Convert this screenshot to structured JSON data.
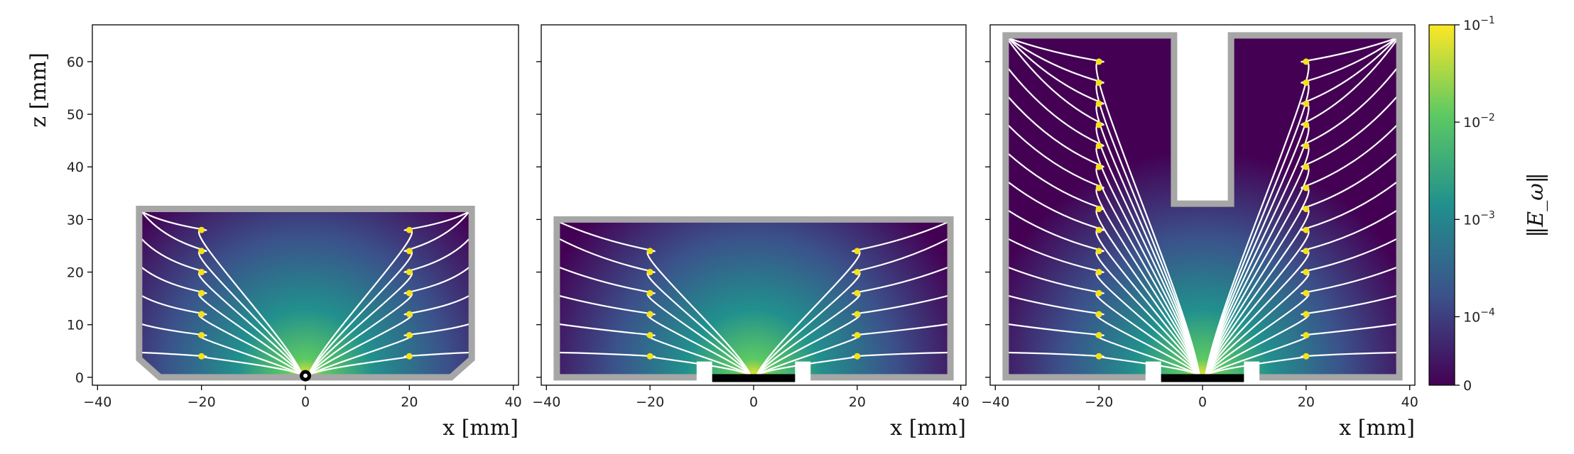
{
  "chart_data": [
    {
      "type": "heatmap",
      "panel": 1,
      "xlabel": "x [mm]",
      "ylabel": "z [mm]",
      "xlim": [
        -41,
        41
      ],
      "ylim": [
        -1.5,
        67
      ],
      "xticks": [
        -40,
        -20,
        0,
        20,
        40
      ],
      "yticks": [
        0,
        10,
        20,
        30,
        40,
        50,
        60
      ],
      "field_source": {
        "x": 0,
        "z": 0
      },
      "geometry": {
        "outline": [
          [
            -32,
            3.5
          ],
          [
            -32,
            32
          ],
          [
            32,
            32
          ],
          [
            32,
            3.5
          ],
          [
            28,
            0
          ],
          [
            -28,
            0
          ]
        ],
        "wall_color": "#a6a6a6"
      },
      "seed_points": [
        {
          "x": -20,
          "z": 4
        },
        {
          "x": -20,
          "z": 8
        },
        {
          "x": -20,
          "z": 12
        },
        {
          "x": -20,
          "z": 16
        },
        {
          "x": -20,
          "z": 20
        },
        {
          "x": -20,
          "z": 24
        },
        {
          "x": -20,
          "z": 28
        },
        {
          "x": 20,
          "z": 4
        },
        {
          "x": 20,
          "z": 8
        },
        {
          "x": 20,
          "z": 12
        },
        {
          "x": 20,
          "z": 16
        },
        {
          "x": 20,
          "z": 20
        },
        {
          "x": 20,
          "z": 24
        },
        {
          "x": 20,
          "z": 28
        }
      ]
    },
    {
      "type": "heatmap",
      "panel": 2,
      "xlabel": "x [mm]",
      "ylabel": "",
      "xlim": [
        -41,
        41
      ],
      "ylim": [
        -1.5,
        67
      ],
      "xticks": [
        -40,
        -20,
        0,
        20,
        40
      ],
      "yticks": [
        0,
        10,
        20,
        30,
        40,
        50,
        60
      ],
      "field_source": {
        "x": 0,
        "z": 0
      },
      "geometry": {
        "outline": [
          [
            -38,
            0
          ],
          [
            -38,
            30
          ],
          [
            38,
            30
          ],
          [
            38,
            0
          ]
        ],
        "wall_color": "#a6a6a6",
        "electrode_gaps": [
          [
            -11,
            -8
          ],
          [
            8,
            11
          ]
        ],
        "electrode": [
          -8,
          8
        ]
      },
      "seed_points": [
        {
          "x": -20,
          "z": 4
        },
        {
          "x": -20,
          "z": 8
        },
        {
          "x": -20,
          "z": 12
        },
        {
          "x": -20,
          "z": 16
        },
        {
          "x": -20,
          "z": 20
        },
        {
          "x": -20,
          "z": 24
        },
        {
          "x": 20,
          "z": 4
        },
        {
          "x": 20,
          "z": 8
        },
        {
          "x": 20,
          "z": 12
        },
        {
          "x": 20,
          "z": 16
        },
        {
          "x": 20,
          "z": 20
        },
        {
          "x": 20,
          "z": 24
        }
      ]
    },
    {
      "type": "heatmap",
      "panel": 3,
      "xlabel": "x [mm]",
      "ylabel": "",
      "xlim": [
        -41,
        41
      ],
      "ylim": [
        -1.5,
        67
      ],
      "xticks": [
        -40,
        -20,
        0,
        20,
        40
      ],
      "yticks": [
        0,
        10,
        20,
        30,
        40,
        50,
        60
      ],
      "field_source": {
        "x": 0,
        "z": 0
      },
      "geometry": {
        "outline": [
          [
            -38,
            0
          ],
          [
            -38,
            65
          ],
          [
            -5.5,
            65
          ],
          [
            -5.5,
            33
          ],
          [
            5.5,
            33
          ],
          [
            5.5,
            65
          ],
          [
            38,
            65
          ],
          [
            38,
            0
          ]
        ],
        "wall_color": "#a6a6a6",
        "electrode_gaps": [
          [
            -11,
            -8
          ],
          [
            8,
            11
          ]
        ],
        "electrode": [
          -8,
          8
        ]
      },
      "seed_points": [
        {
          "x": -20,
          "z": 4
        },
        {
          "x": -20,
          "z": 8
        },
        {
          "x": -20,
          "z": 12
        },
        {
          "x": -20,
          "z": 16
        },
        {
          "x": -20,
          "z": 20
        },
        {
          "x": -20,
          "z": 24
        },
        {
          "x": -20,
          "z": 28
        },
        {
          "x": -20,
          "z": 32
        },
        {
          "x": -20,
          "z": 36
        },
        {
          "x": -20,
          "z": 40
        },
        {
          "x": -20,
          "z": 44
        },
        {
          "x": -20,
          "z": 48
        },
        {
          "x": -20,
          "z": 52
        },
        {
          "x": -20,
          "z": 56
        },
        {
          "x": -20,
          "z": 60
        },
        {
          "x": 20,
          "z": 4
        },
        {
          "x": 20,
          "z": 8
        },
        {
          "x": 20,
          "z": 12
        },
        {
          "x": 20,
          "z": 16
        },
        {
          "x": 20,
          "z": 20
        },
        {
          "x": 20,
          "z": 24
        },
        {
          "x": 20,
          "z": 28
        },
        {
          "x": 20,
          "z": 32
        },
        {
          "x": 20,
          "z": 36
        },
        {
          "x": 20,
          "z": 40
        },
        {
          "x": 20,
          "z": 44
        },
        {
          "x": 20,
          "z": 48
        },
        {
          "x": 20,
          "z": 52
        },
        {
          "x": 20,
          "z": 56
        },
        {
          "x": 20,
          "z": 60
        }
      ]
    }
  ],
  "colorbar": {
    "label": "‖E_ω‖",
    "scale": "log",
    "ticks": [
      "10^-1",
      "10^-2",
      "10^-3",
      "10^-4",
      "0"
    ],
    "colormap": [
      "#440154",
      "#3b528b",
      "#21908d",
      "#5dc963",
      "#fde725"
    ]
  },
  "colors": {
    "streamline": "#ffffff",
    "seed": "#f5e11a",
    "electrode": "#000000"
  }
}
